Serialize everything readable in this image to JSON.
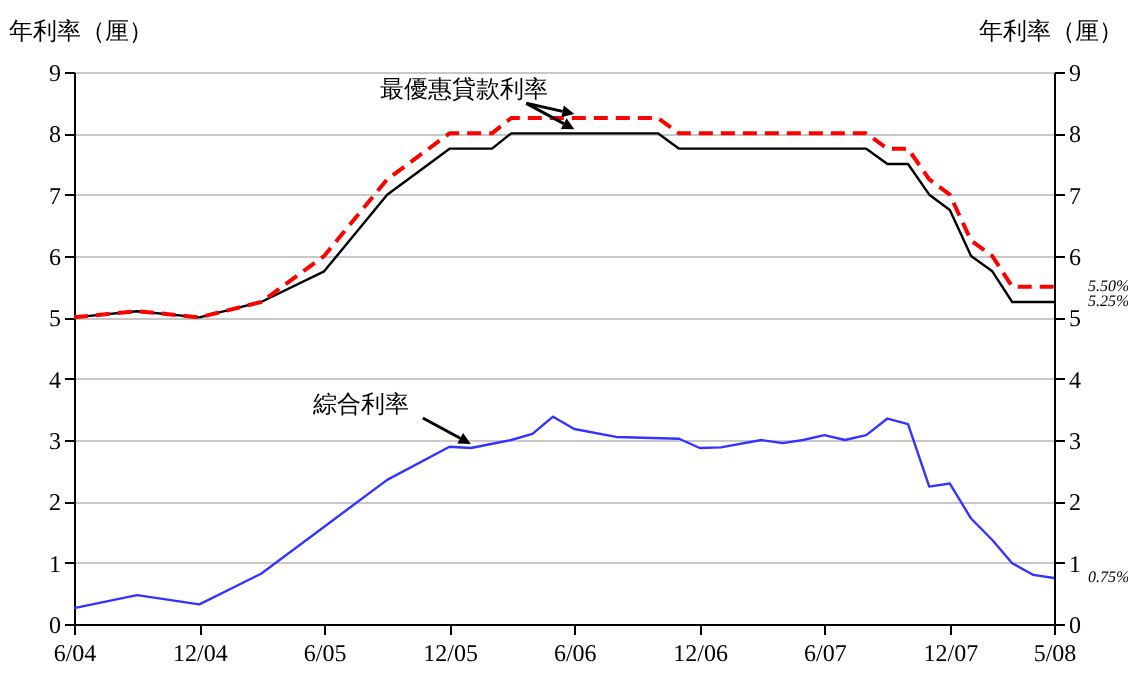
{
  "chart_data": {
    "type": "line",
    "ylabel": "年利率（厘）",
    "y2label": "年利率（厘）",
    "xlim": [
      "2004-06",
      "2008-05"
    ],
    "xticks": [
      {
        "value": "2004-06",
        "label": "6/04"
      },
      {
        "value": "2004-12",
        "label": "12/04"
      },
      {
        "value": "2005-06",
        "label": "6/05"
      },
      {
        "value": "2005-12",
        "label": "12/05"
      },
      {
        "value": "2006-06",
        "label": "6/06"
      },
      {
        "value": "2006-12",
        "label": "12/06"
      },
      {
        "value": "2007-06",
        "label": "6/07"
      },
      {
        "value": "2007-12",
        "label": "12/07"
      },
      {
        "value": "2008-05",
        "label": "5/08"
      }
    ],
    "ylim": [
      0,
      9
    ],
    "yticks": [
      0,
      1,
      2,
      3,
      4,
      5,
      6,
      7,
      8,
      9
    ],
    "y2lim": [
      0,
      9
    ],
    "y2ticks": [
      0,
      1,
      2,
      3,
      4,
      5,
      6,
      7,
      8,
      9
    ],
    "grid": "y",
    "series": [
      {
        "color": "#000000",
        "line_style": "solid",
        "x": [
          "2004-06",
          "2004-09",
          "2004-12",
          "2005-03",
          "2005-06",
          "2005-09",
          "2005-12",
          "2006-02",
          "2006-03",
          "2006-10",
          "2006-11",
          "2007-08",
          "2007-09",
          "2007-10",
          "2007-11",
          "2007-12",
          "2008-01",
          "2008-02",
          "2008-03",
          "2008-05"
        ],
        "values": [
          5.0,
          5.1,
          5.0,
          5.25,
          5.75,
          7.0,
          7.75,
          7.75,
          8.0,
          8.0,
          7.75,
          7.75,
          7.5,
          7.5,
          7.0,
          6.75,
          6.0,
          5.75,
          5.25,
          5.25
        ]
      },
      {
        "color": "#ff0000",
        "line_style": "dashed",
        "x": [
          "2004-06",
          "2004-09",
          "2004-12",
          "2005-03",
          "2005-06",
          "2005-09",
          "2005-12",
          "2006-02",
          "2006-03",
          "2006-10",
          "2006-11",
          "2007-08",
          "2007-09",
          "2007-10",
          "2007-11",
          "2007-12",
          "2008-01",
          "2008-02",
          "2008-03",
          "2008-05"
        ],
        "values": [
          5.0,
          5.1,
          5.0,
          5.25,
          6.0,
          7.25,
          8.0,
          8.0,
          8.25,
          8.25,
          8.0,
          8.0,
          7.75,
          7.75,
          7.25,
          7.0,
          6.25,
          6.0,
          5.5,
          5.5
        ]
      },
      {
        "color": "#3333ff",
        "line_style": "solid",
        "x": [
          "2004-06",
          "2004-09",
          "2004-12",
          "2005-03",
          "2005-09",
          "2005-12",
          "2006-01",
          "2006-03",
          "2006-04",
          "2006-05",
          "2006-06",
          "2006-08",
          "2006-11",
          "2006-12",
          "2007-01",
          "2007-03",
          "2007-04",
          "2007-05",
          "2007-06",
          "2007-07",
          "2007-08",
          "2007-09",
          "2007-10",
          "2007-11",
          "2007-12",
          "2008-01",
          "2008-02",
          "2008-03",
          "2008-04",
          "2008-05"
        ],
        "values": [
          0.26,
          0.47,
          0.32,
          0.82,
          2.35,
          2.89,
          2.87,
          3.0,
          3.1,
          3.38,
          3.18,
          3.05,
          3.02,
          2.87,
          2.88,
          3.0,
          2.95,
          3.0,
          3.08,
          3.0,
          3.08,
          3.35,
          3.26,
          2.24,
          2.29,
          1.72,
          1.37,
          0.99,
          0.8,
          0.75
        ]
      }
    ],
    "annotations": [
      {
        "text": "最優惠貸款利率",
        "x": "2006-06",
        "y": 8.0
      },
      {
        "text": "綜合利率",
        "x": "2006-01",
        "y": 2.87
      },
      {
        "text": "5.50%",
        "x": "2008-05",
        "y": 5.5
      },
      {
        "text": "5.25%",
        "x": "2008-05",
        "y": 5.25
      },
      {
        "text": "0.75%",
        "x": "2008-05",
        "y": 0.75
      }
    ]
  }
}
